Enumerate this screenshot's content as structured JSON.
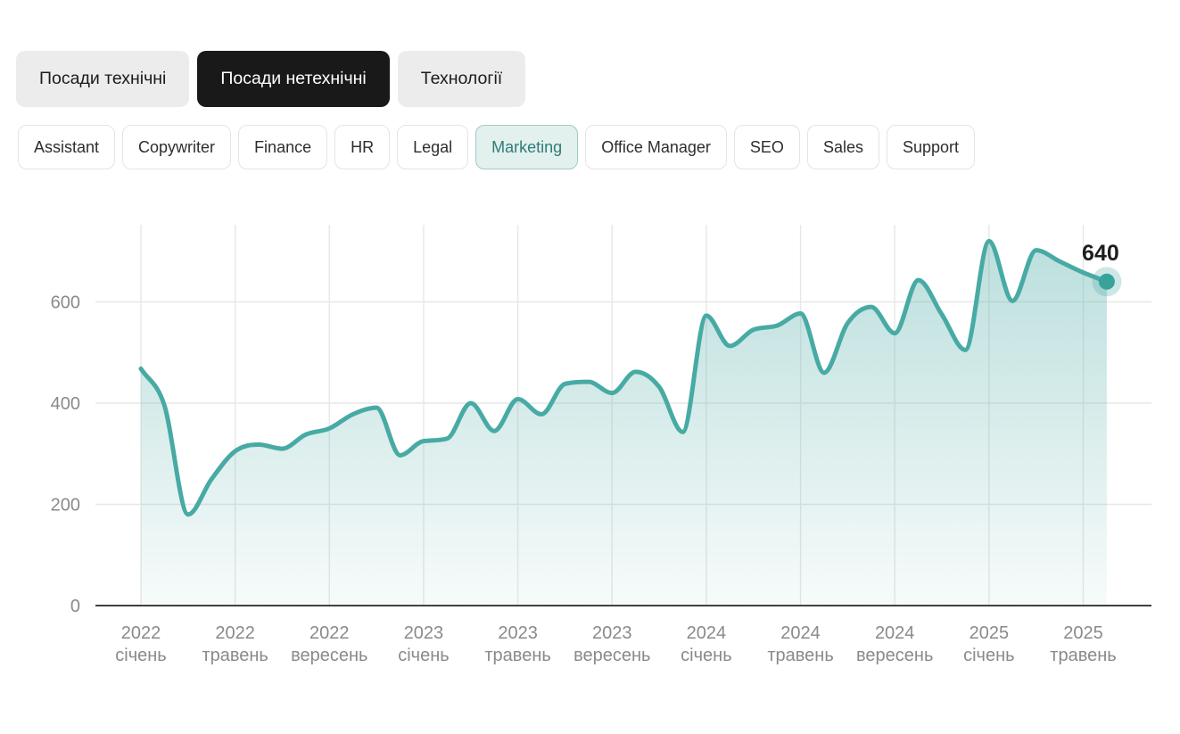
{
  "tabs": [
    {
      "label": "Посади технічні",
      "active": false
    },
    {
      "label": "Посади нетехнічні",
      "active": true
    },
    {
      "label": "Технології",
      "active": false
    }
  ],
  "filters": [
    {
      "label": "Assistant",
      "active": false
    },
    {
      "label": "Copywriter",
      "active": false
    },
    {
      "label": "Finance",
      "active": false
    },
    {
      "label": "HR",
      "active": false
    },
    {
      "label": "Legal",
      "active": false
    },
    {
      "label": "Marketing",
      "active": true
    },
    {
      "label": "Office Manager",
      "active": false
    },
    {
      "label": "SEO",
      "active": false
    },
    {
      "label": "Sales",
      "active": false
    },
    {
      "label": "Support",
      "active": false
    }
  ],
  "chart_data": {
    "type": "area",
    "series_name": "Marketing",
    "x_monthly": [
      "2022-01",
      "2022-02",
      "2022-03",
      "2022-04",
      "2022-05",
      "2022-06",
      "2022-07",
      "2022-08",
      "2022-09",
      "2022-10",
      "2022-11",
      "2022-12",
      "2023-01",
      "2023-02",
      "2023-03",
      "2023-04",
      "2023-05",
      "2023-06",
      "2023-07",
      "2023-08",
      "2023-09",
      "2023-10",
      "2023-11",
      "2023-12",
      "2024-01",
      "2024-02",
      "2024-03",
      "2024-04",
      "2024-05",
      "2024-06",
      "2024-07",
      "2024-08",
      "2024-09",
      "2024-10",
      "2024-11",
      "2024-12",
      "2025-01",
      "2025-02",
      "2025-03",
      "2025-04",
      "2025-05",
      "2025-06"
    ],
    "values": [
      468,
      395,
      180,
      250,
      305,
      318,
      310,
      338,
      350,
      378,
      391,
      297,
      325,
      330,
      400,
      345,
      408,
      378,
      438,
      442,
      420,
      462,
      432,
      343,
      573,
      513,
      545,
      553,
      577,
      460,
      558,
      590,
      538,
      643,
      575,
      505,
      720,
      602,
      702,
      680,
      658,
      640
    ],
    "x_tick_labels": [
      {
        "year": "2022",
        "month": "січень"
      },
      {
        "year": "2022",
        "month": "травень"
      },
      {
        "year": "2022",
        "month": "вересень"
      },
      {
        "year": "2023",
        "month": "січень"
      },
      {
        "year": "2023",
        "month": "травень"
      },
      {
        "year": "2023",
        "month": "вересень"
      },
      {
        "year": "2024",
        "month": "січень"
      },
      {
        "year": "2024",
        "month": "травень"
      },
      {
        "year": "2024",
        "month": "вересень"
      },
      {
        "year": "2025",
        "month": "січень"
      },
      {
        "year": "2025",
        "month": "травень"
      }
    ],
    "x_tick_every_months": 4,
    "y_ticks": [
      0,
      200,
      400,
      600
    ],
    "ylim": [
      0,
      760
    ],
    "grid": true,
    "legend": "none",
    "end_point_label": "640",
    "colors": {
      "line": "#48aaa4",
      "dot": "#39a29b",
      "halo": "rgba(72,170,164,0.28)",
      "fill_top": "rgba(92,178,172,0.40)",
      "fill_bottom": "rgba(92,178,172,0.05)",
      "grid": "#e7e7e7",
      "axis": "#3f3f3f",
      "tick_text": "#8a8a8a",
      "label_text": "#1e1e1e"
    }
  }
}
